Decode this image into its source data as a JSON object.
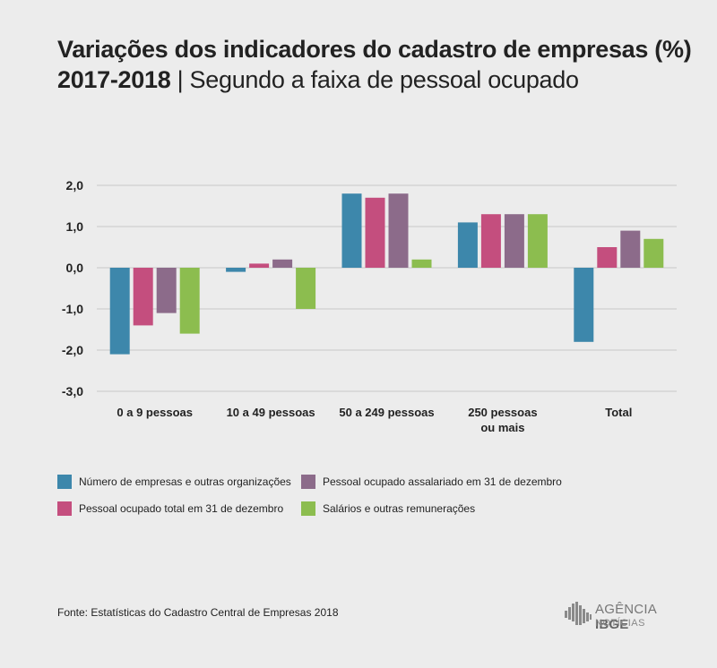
{
  "header": {
    "title": "Variações dos indicadores do cadastro de empresas (%)",
    "subtitle_year": "2017-2018",
    "subtitle_sep": " | ",
    "subtitle_rest": "Segundo a faixa de pessoal ocupado"
  },
  "chart_data": {
    "type": "bar",
    "categories": [
      [
        "0 a 9 pessoas"
      ],
      [
        "10 a 49 pessoas"
      ],
      [
        "50 a 249 pessoas"
      ],
      [
        "250 pessoas",
        "ou mais"
      ],
      [
        "Total"
      ]
    ],
    "series": [
      {
        "name": "Número de empresas e outras organizações",
        "color": "#3d87ab",
        "values": [
          -2.1,
          -0.1,
          1.8,
          1.1,
          -1.8
        ]
      },
      {
        "name": "Pessoal ocupado total em 31 de dezembro",
        "color": "#c44e7e",
        "values": [
          -1.4,
          0.1,
          1.7,
          1.3,
          0.5
        ]
      },
      {
        "name": "Pessoal ocupado assalariado em 31 de dezembro",
        "color": "#8c6b8a",
        "values": [
          -1.1,
          0.2,
          1.8,
          1.3,
          0.9
        ]
      },
      {
        "name": "Salários e outras remunerações",
        "color": "#8cbd4f",
        "values": [
          -1.6,
          -1.0,
          0.2,
          1.3,
          0.7
        ]
      }
    ],
    "yticks": [
      "2,0",
      "1,0",
      "0,0",
      "-1,0",
      "-2,0",
      "-3,0"
    ],
    "ylim": [
      -3.0,
      2.0
    ],
    "grid": true,
    "legend_position": "bottom"
  },
  "footer": {
    "source": "Fonte: Estatísticas do Cadastro Central de Empresas 2018",
    "logo_line1a": "AGÊNCIA",
    "logo_line1b": "IBGE",
    "logo_line2": "NOTÍCIAS"
  }
}
